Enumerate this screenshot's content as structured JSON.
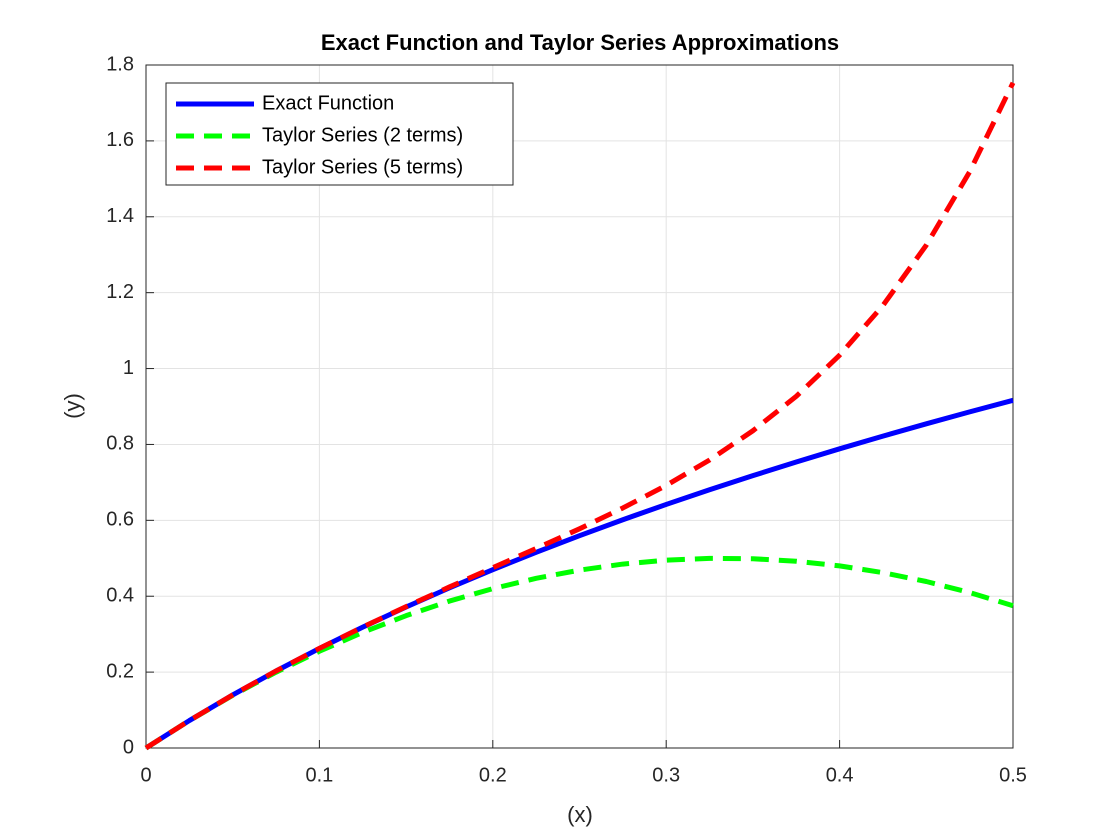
{
  "chart_data": {
    "type": "line",
    "title": "Exact Function and Taylor Series Approximations",
    "xlabel": "(x)",
    "ylabel": "(y)",
    "x": [
      0,
      0.025,
      0.05,
      0.075,
      0.1,
      0.125,
      0.15,
      0.175,
      0.2,
      0.225,
      0.25,
      0.275,
      0.3,
      0.325,
      0.35,
      0.375,
      0.4,
      0.425,
      0.45,
      0.475,
      0.5
    ],
    "series": [
      {
        "name": "Exact Function",
        "color": "#0000ff",
        "dash": "solid",
        "values": [
          0,
          0.0723,
          0.1398,
          0.2029,
          0.2624,
          0.3185,
          0.3716,
          0.422,
          0.47,
          0.5158,
          0.5596,
          0.6016,
          0.6419,
          0.6806,
          0.7178,
          0.7538,
          0.7885,
          0.822,
          0.8544,
          0.8858,
          0.9163
        ]
      },
      {
        "name": "Taylor Series (2 terms)",
        "color": "#00ff00",
        "dash": "dashed",
        "values": [
          0,
          0.0722,
          0.1388,
          0.1997,
          0.255,
          0.3047,
          0.3488,
          0.3872,
          0.42,
          0.4472,
          0.4688,
          0.4847,
          0.495,
          0.4997,
          0.4988,
          0.4922,
          0.48,
          0.4622,
          0.4388,
          0.4097,
          0.375
        ]
      },
      {
        "name": "Taylor Series (5 terms)",
        "color": "#ff0000",
        "dash": "dashed",
        "values": [
          0,
          0.0723,
          0.1398,
          0.203,
          0.2625,
          0.3188,
          0.3726,
          0.4244,
          0.4752,
          0.5258,
          0.5777,
          0.6326,
          0.6921,
          0.759,
          0.8361,
          0.9268,
          1.0353,
          1.1663,
          1.3253,
          1.5185,
          1.7531
        ]
      }
    ],
    "xlim": [
      0,
      0.5
    ],
    "xticks": [
      0,
      0.1,
      0.2,
      0.3,
      0.4,
      0.5
    ],
    "ylim": [
      0,
      1.8
    ],
    "yticks": [
      0,
      0.2,
      0.4,
      0.6,
      0.8,
      1,
      1.2,
      1.4,
      1.6,
      1.8
    ],
    "grid": true,
    "legend": "upper left"
  }
}
